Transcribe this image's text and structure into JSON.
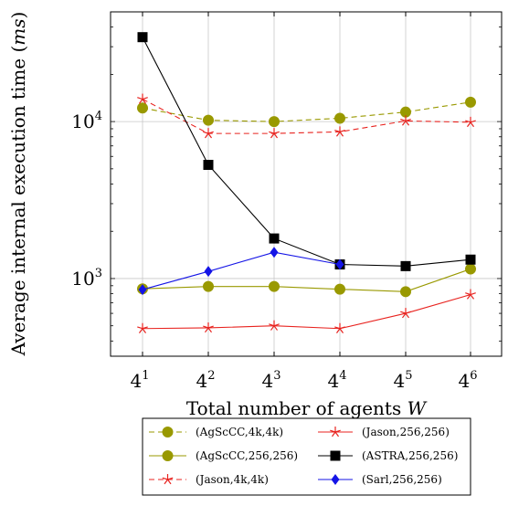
{
  "chart_data": {
    "type": "line",
    "xlabel": "Total number of agents W",
    "xlabel_parts": {
      "text": "Total number of agents ",
      "var": "W"
    },
    "ylabel": "Average internal execution time (ms)",
    "ylabel_parts": {
      "text": "Average internal execution time (",
      "unit": "ms",
      "close": ")"
    },
    "x_ticks": [
      {
        "base": "4",
        "exp": "1"
      },
      {
        "base": "4",
        "exp": "2"
      },
      {
        "base": "4",
        "exp": "3"
      },
      {
        "base": "4",
        "exp": "4"
      },
      {
        "base": "4",
        "exp": "5"
      },
      {
        "base": "4",
        "exp": "6"
      }
    ],
    "y_ticks": [
      {
        "value": 1000,
        "base": "10",
        "exp": "3"
      },
      {
        "value": 10000,
        "base": "10",
        "exp": "4"
      }
    ],
    "y_scale": "log",
    "ylim": [
      320,
      50000
    ],
    "grid": true,
    "legend_position": "bottom",
    "series": [
      {
        "name": "(AgScCC,4k,4k)",
        "color": "#999900",
        "dash": true,
        "marker": "circle",
        "values": [
          12200,
          10200,
          10000,
          10500,
          11500,
          13300
        ]
      },
      {
        "name": "(AgScCC,256,256)",
        "color": "#999900",
        "dash": false,
        "marker": "circle",
        "values": [
          860,
          890,
          890,
          855,
          825,
          1150
        ]
      },
      {
        "name": "(Jason,4k,4k)",
        "color": "#e8231f",
        "dash": true,
        "marker": "star",
        "values": [
          13900,
          8400,
          8400,
          8600,
          10100,
          9900
        ]
      },
      {
        "name": "(Jason,256,256)",
        "color": "#e8231f",
        "dash": false,
        "marker": "star",
        "values": [
          480,
          485,
          500,
          480,
          600,
          790
        ]
      },
      {
        "name": "(ASTRA,256,256)",
        "color": "#000000",
        "dash": false,
        "marker": "square",
        "values": [
          34500,
          5300,
          1800,
          1230,
          1200,
          1320
        ]
      },
      {
        "name": "(Sarl,256,256)",
        "color": "#1414e6",
        "dash": false,
        "marker": "diamond",
        "values": [
          850,
          1110,
          1470,
          1230,
          null,
          null
        ]
      }
    ],
    "legend_order": [
      0,
      3,
      1,
      4,
      2,
      5
    ]
  }
}
